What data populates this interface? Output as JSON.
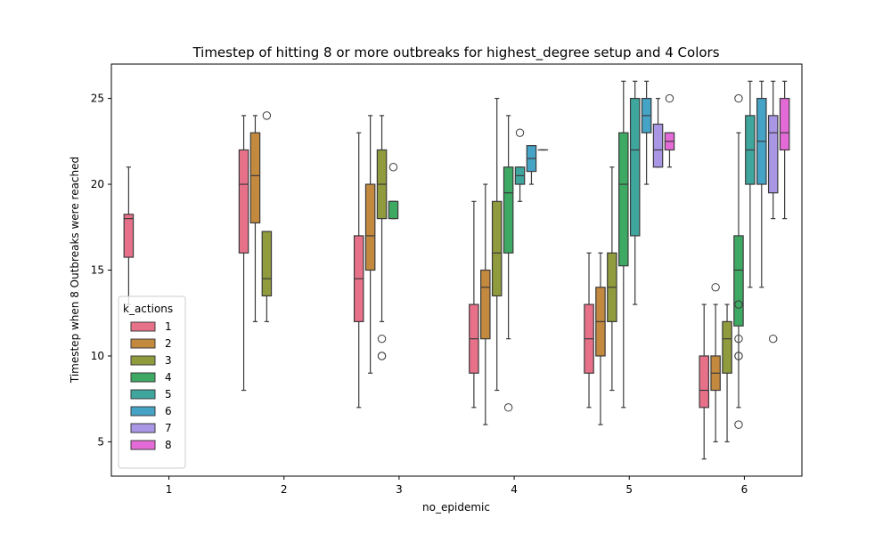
{
  "chart_data": {
    "type": "box",
    "title": "Timestep of hitting 8 or more outbreaks for highest_degree setup and 4 Colors",
    "xlabel": "no_epidemic",
    "ylabel": "Timestep when 8 Outbreaks were reached",
    "categories": [
      "1",
      "2",
      "3",
      "4",
      "5",
      "6"
    ],
    "ylim": [
      3,
      27
    ],
    "yticks": [
      5,
      10,
      15,
      20,
      25
    ],
    "grid": false,
    "legend": {
      "title": "k_actions",
      "placement": "lower-left",
      "entries": [
        "1",
        "2",
        "3",
        "4",
        "5",
        "6",
        "7",
        "8"
      ]
    },
    "hue_colors": [
      "#e8718a",
      "#c3893e",
      "#8f9b3c",
      "#3da963",
      "#3fa69e",
      "#45a3c5",
      "#a997e6",
      "#e46bd7"
    ],
    "series": [
      {
        "name": "1",
        "boxes": [
          {
            "category": "1",
            "whislo": 13,
            "q1": 15.75,
            "med": 18,
            "q3": 18.25,
            "whishi": 21,
            "fliers": []
          },
          {
            "category": "2",
            "whislo": 8,
            "q1": 16,
            "med": 20,
            "q3": 22,
            "whishi": 24,
            "fliers": []
          },
          {
            "category": "3",
            "whislo": 7,
            "q1": 12,
            "med": 14.5,
            "q3": 17,
            "whishi": 23,
            "fliers": []
          },
          {
            "category": "4",
            "whislo": 7,
            "q1": 9,
            "med": 11,
            "q3": 13,
            "whishi": 19,
            "fliers": []
          },
          {
            "category": "5",
            "whislo": 7,
            "q1": 9,
            "med": 11,
            "q3": 13,
            "whishi": 16,
            "fliers": []
          },
          {
            "category": "6",
            "whislo": 4,
            "q1": 7,
            "med": 8,
            "q3": 10,
            "whishi": 13,
            "fliers": []
          }
        ]
      },
      {
        "name": "2",
        "boxes": [
          {
            "category": "2",
            "whislo": 12,
            "q1": 17.75,
            "med": 20.5,
            "q3": 23,
            "whishi": 24,
            "fliers": []
          },
          {
            "category": "3",
            "whislo": 9,
            "q1": 15,
            "med": 17,
            "q3": 20,
            "whishi": 24,
            "fliers": []
          },
          {
            "category": "4",
            "whislo": 6,
            "q1": 11,
            "med": 14,
            "q3": 15,
            "whishi": 20,
            "fliers": []
          },
          {
            "category": "5",
            "whislo": 6,
            "q1": 10,
            "med": 12,
            "q3": 14,
            "whishi": 16,
            "fliers": []
          },
          {
            "category": "6",
            "whislo": 5,
            "q1": 8,
            "med": 9,
            "q3": 10,
            "whishi": 13,
            "fliers": [
              14
            ]
          }
        ]
      },
      {
        "name": "3",
        "boxes": [
          {
            "category": "2",
            "whislo": 12,
            "q1": 13.5,
            "med": 14.5,
            "q3": 17.25,
            "whishi": 17.25,
            "fliers": [
              24
            ]
          },
          {
            "category": "3",
            "whislo": 12,
            "q1": 18,
            "med": 20,
            "q3": 22,
            "whishi": 24,
            "fliers": [
              11,
              10,
              10
            ]
          },
          {
            "category": "4",
            "whislo": 8,
            "q1": 13.5,
            "med": 16,
            "q3": 19,
            "whishi": 25,
            "fliers": []
          },
          {
            "category": "5",
            "whislo": 8,
            "q1": 12,
            "med": 14,
            "q3": 16,
            "whishi": 21,
            "fliers": []
          },
          {
            "category": "6",
            "whislo": 5,
            "q1": 9,
            "med": 11,
            "q3": 12,
            "whishi": 13,
            "fliers": []
          }
        ]
      },
      {
        "name": "4",
        "boxes": [
          {
            "category": "3",
            "whislo": 18,
            "q1": 18,
            "med": 19,
            "q3": 19,
            "whishi": 19,
            "fliers": [
              21
            ]
          },
          {
            "category": "4",
            "whislo": 11,
            "q1": 16,
            "med": 19.5,
            "q3": 21,
            "whishi": 24,
            "fliers": [
              7
            ]
          },
          {
            "category": "5",
            "whislo": 7,
            "q1": 15.25,
            "med": 20,
            "q3": 23,
            "whishi": 26,
            "fliers": []
          },
          {
            "category": "6",
            "whislo": 7,
            "q1": 11.75,
            "med": 15,
            "q3": 17,
            "whishi": 23,
            "fliers": [
              25,
              13,
              11,
              10,
              10,
              6
            ]
          }
        ]
      },
      {
        "name": "5",
        "boxes": [
          {
            "category": "4",
            "whislo": 19,
            "q1": 20,
            "med": 20.5,
            "q3": 21,
            "whishi": 21,
            "fliers": [
              23
            ]
          },
          {
            "category": "5",
            "whislo": 13,
            "q1": 17,
            "med": 22,
            "q3": 25,
            "whishi": 26,
            "fliers": []
          },
          {
            "category": "6",
            "whislo": 14,
            "q1": 20,
            "med": 22,
            "q3": 24,
            "whishi": 26,
            "fliers": []
          }
        ]
      },
      {
        "name": "6",
        "boxes": [
          {
            "category": "4",
            "whislo": 20,
            "q1": 20.75,
            "med": 21.5,
            "q3": 22.25,
            "whishi": 22.25,
            "fliers": []
          },
          {
            "category": "5",
            "whislo": 20,
            "q1": 23,
            "med": 24,
            "q3": 25,
            "whishi": 26,
            "fliers": []
          },
          {
            "category": "6",
            "whislo": 14,
            "q1": 20,
            "med": 22.5,
            "q3": 25,
            "whishi": 26,
            "fliers": []
          }
        ]
      },
      {
        "name": "7",
        "boxes": [
          {
            "category": "4",
            "whislo": 22,
            "q1": 22,
            "med": 22,
            "q3": 22,
            "whishi": 22,
            "fliers": []
          },
          {
            "category": "5",
            "whislo": 21,
            "q1": 21,
            "med": 22,
            "q3": 23.5,
            "whishi": 25,
            "fliers": []
          },
          {
            "category": "6",
            "whislo": 18,
            "q1": 19.5,
            "med": 23,
            "q3": 24,
            "whishi": 26,
            "fliers": [
              11
            ]
          }
        ]
      },
      {
        "name": "8",
        "boxes": [
          {
            "category": "5",
            "whislo": 21,
            "q1": 22,
            "med": 22.5,
            "q3": 23,
            "whishi": 23,
            "fliers": [
              25
            ]
          },
          {
            "category": "6",
            "whislo": 18,
            "q1": 22,
            "med": 23,
            "q3": 25,
            "whishi": 26,
            "fliers": []
          }
        ]
      }
    ]
  }
}
